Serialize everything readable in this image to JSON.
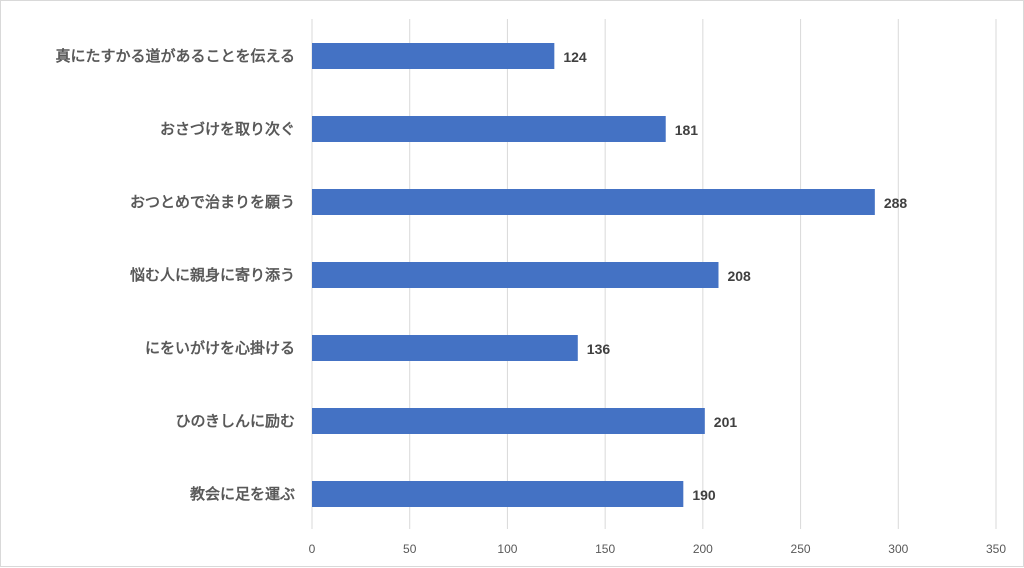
{
  "chart_data": {
    "type": "bar",
    "orientation": "horizontal",
    "categories": [
      "真にたすかる道があることを伝える",
      "おさづけを取り次ぐ",
      "おつとめで治まりを願う",
      "悩む人に親身に寄り添う",
      "にをいがけを心掛ける",
      "ひのきしんに励む",
      "教会に足を運ぶ"
    ],
    "values": [
      124,
      181,
      288,
      208,
      136,
      201,
      190
    ],
    "data_labels": [
      "124",
      "181",
      "288",
      "208",
      "136",
      "201",
      "190"
    ],
    "xlim": [
      0,
      350
    ],
    "x_ticks": [
      "0",
      "50",
      "100",
      "150",
      "200",
      "250",
      "300",
      "350"
    ],
    "grid": "vertical",
    "legend": "none",
    "bar_color": "#4472C4",
    "grid_color": "#d9d9d9"
  }
}
